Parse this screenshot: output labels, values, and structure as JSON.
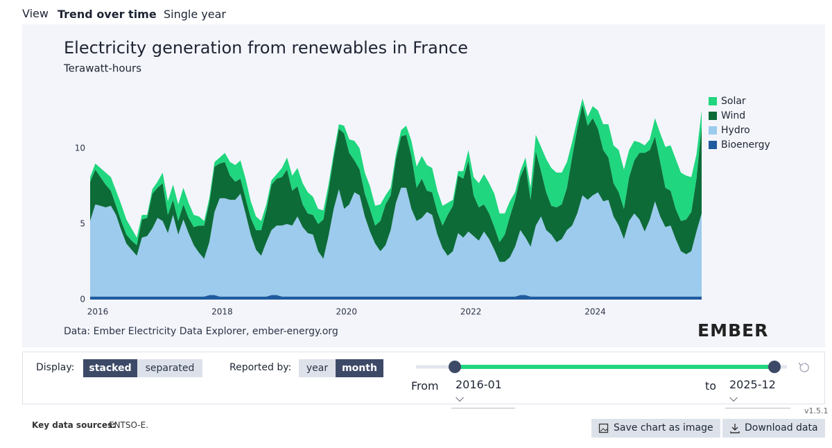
{
  "tabs": {
    "label": "View",
    "items": [
      "Trend over time",
      "Single year"
    ]
  },
  "chart_data": {
    "type": "stacked-area",
    "title": "Electricity generation from renewables in France",
    "subtitle": "Terawatt-hours",
    "x": [
      "2016-01",
      "2016-02",
      "2016-03",
      "2016-04",
      "2016-05",
      "2016-06",
      "2016-07",
      "2016-08",
      "2016-09",
      "2016-10",
      "2016-11",
      "2016-12",
      "2017-01",
      "2017-02",
      "2017-03",
      "2017-04",
      "2017-05",
      "2017-06",
      "2017-07",
      "2017-08",
      "2017-09",
      "2017-10",
      "2017-11",
      "2017-12",
      "2018-01",
      "2018-02",
      "2018-03",
      "2018-04",
      "2018-05",
      "2018-06",
      "2018-07",
      "2018-08",
      "2018-09",
      "2018-10",
      "2018-11",
      "2018-12",
      "2019-01",
      "2019-02",
      "2019-03",
      "2019-04",
      "2019-05",
      "2019-06",
      "2019-07",
      "2019-08",
      "2019-09",
      "2019-10",
      "2019-11",
      "2019-12",
      "2020-01",
      "2020-02",
      "2020-03",
      "2020-04",
      "2020-05",
      "2020-06",
      "2020-07",
      "2020-08",
      "2020-09",
      "2020-10",
      "2020-11",
      "2020-12",
      "2021-01",
      "2021-02",
      "2021-03",
      "2021-04",
      "2021-05",
      "2021-06",
      "2021-07",
      "2021-08",
      "2021-09",
      "2021-10",
      "2021-11",
      "2021-12",
      "2022-01",
      "2022-02",
      "2022-03",
      "2022-04",
      "2022-05",
      "2022-06",
      "2022-07",
      "2022-08",
      "2022-09",
      "2022-10",
      "2022-11",
      "2022-12",
      "2023-01",
      "2023-02",
      "2023-03",
      "2023-04",
      "2023-05",
      "2023-06",
      "2023-07",
      "2023-08",
      "2023-09",
      "2023-10",
      "2023-11",
      "2023-12",
      "2024-01",
      "2024-02",
      "2024-03",
      "2024-04",
      "2024-05",
      "2024-06",
      "2024-07",
      "2024-08",
      "2024-09",
      "2024-10",
      "2024-11",
      "2024-12",
      "2025-01",
      "2025-02",
      "2025-03",
      "2025-04",
      "2025-05",
      "2025-06",
      "2025-07",
      "2025-08",
      "2025-09",
      "2025-10",
      "2025-11"
    ],
    "series": [
      {
        "name": "Bioenergy",
        "color": "#1f5b9e",
        "values": [
          0.2,
          0.2,
          0.2,
          0.2,
          0.2,
          0.2,
          0.2,
          0.2,
          0.2,
          0.2,
          0.2,
          0.2,
          0.2,
          0.2,
          0.2,
          0.2,
          0.2,
          0.2,
          0.2,
          0.2,
          0.2,
          0.2,
          0.2,
          0.3,
          0.3,
          0.2,
          0.2,
          0.2,
          0.2,
          0.2,
          0.2,
          0.2,
          0.2,
          0.2,
          0.2,
          0.3,
          0.3,
          0.2,
          0.2,
          0.2,
          0.2,
          0.2,
          0.2,
          0.2,
          0.2,
          0.2,
          0.2,
          0.2,
          0.2,
          0.2,
          0.2,
          0.2,
          0.2,
          0.2,
          0.2,
          0.2,
          0.2,
          0.2,
          0.2,
          0.2,
          0.2,
          0.2,
          0.2,
          0.2,
          0.2,
          0.2,
          0.2,
          0.2,
          0.2,
          0.2,
          0.2,
          0.2,
          0.2,
          0.2,
          0.2,
          0.2,
          0.2,
          0.2,
          0.2,
          0.2,
          0.2,
          0.2,
          0.2,
          0.3,
          0.3,
          0.2,
          0.2,
          0.2,
          0.2,
          0.2,
          0.2,
          0.2,
          0.2,
          0.2,
          0.2,
          0.2,
          0.2,
          0.2,
          0.2,
          0.2,
          0.2,
          0.2,
          0.2,
          0.2,
          0.2,
          0.2,
          0.2,
          0.2,
          0.2,
          0.2,
          0.2,
          0.2,
          0.2,
          0.2,
          0.2,
          0.2,
          0.2,
          0.2,
          0.2
        ]
      },
      {
        "name": "Hydro",
        "color": "#9ccbed",
        "values": [
          5.0,
          6.1,
          6.0,
          5.9,
          6.0,
          5.4,
          4.4,
          3.5,
          3.1,
          2.7,
          3.9,
          4.0,
          4.5,
          5.2,
          5.0,
          4.2,
          5.4,
          4.1,
          5.1,
          4.2,
          3.4,
          2.9,
          2.5,
          3.5,
          5.5,
          6.5,
          6.5,
          6.4,
          6.4,
          6.8,
          5.5,
          4.1,
          3.1,
          2.7,
          3.6,
          4.3,
          4.6,
          4.7,
          4.8,
          4.7,
          5.3,
          4.6,
          4.2,
          4.1,
          3.0,
          2.5,
          4.0,
          5.8,
          7.1,
          5.8,
          6.1,
          6.9,
          6.7,
          5.3,
          4.3,
          3.5,
          3.0,
          3.4,
          4.4,
          6.2,
          7.2,
          7.2,
          5.8,
          5.0,
          5.2,
          5.6,
          5.4,
          4.1,
          3.2,
          2.7,
          3.0,
          4.2,
          3.9,
          4.3,
          4.0,
          3.7,
          4.3,
          3.8,
          3.1,
          2.3,
          2.3,
          2.6,
          3.3,
          4.3,
          3.8,
          3.3,
          4.7,
          5.3,
          4.4,
          4.1,
          3.6,
          3.8,
          4.4,
          4.7,
          5.5,
          6.7,
          6.4,
          6.7,
          6.9,
          6.3,
          6.4,
          5.3,
          4.7,
          3.8,
          5.0,
          5.5,
          5.1,
          4.3,
          5.1,
          6.3,
          5.3,
          4.6,
          4.7,
          3.8,
          3.0,
          2.8,
          3.0,
          4.3,
          5.5
        ]
      },
      {
        "name": "Wind",
        "color": "#0d6b38",
        "values": [
          2.6,
          2.3,
          1.9,
          1.5,
          1.0,
          0.6,
          0.6,
          0.6,
          0.6,
          0.7,
          1.2,
          1.2,
          2.3,
          2.0,
          2.5,
          1.2,
          1.0,
          0.9,
          1.0,
          1.0,
          1.2,
          1.8,
          2.2,
          2.6,
          3.0,
          2.3,
          2.4,
          1.6,
          1.2,
          1.0,
          1.0,
          1.1,
          1.3,
          1.7,
          2.1,
          3.0,
          3.1,
          3.2,
          3.6,
          2.3,
          2.0,
          1.5,
          1.3,
          1.3,
          1.8,
          2.6,
          3.0,
          3.4,
          4.0,
          5.0,
          3.4,
          2.1,
          1.7,
          1.5,
          1.5,
          1.2,
          2.0,
          2.7,
          2.3,
          2.9,
          3.4,
          3.5,
          3.5,
          2.2,
          2.6,
          1.4,
          1.5,
          1.5,
          1.5,
          2.7,
          3.0,
          3.8,
          3.9,
          4.7,
          2.7,
          2.2,
          1.8,
          1.7,
          1.5,
          1.3,
          1.8,
          2.7,
          3.1,
          3.5,
          4.8,
          3.1,
          4.9,
          3.0,
          2.5,
          1.9,
          2.3,
          2.3,
          2.8,
          4.5,
          5.6,
          6.0,
          4.9,
          5.1,
          4.2,
          3.4,
          2.8,
          2.2,
          2.2,
          2.0,
          2.9,
          3.5,
          4.4,
          5.2,
          4.6,
          4.3,
          3.6,
          2.6,
          2.3,
          2.0,
          2.0,
          2.3,
          2.6,
          3.5,
          5.8
        ]
      },
      {
        "name": "Solar",
        "color": "#20d67e",
        "values": [
          0.3,
          0.4,
          0.6,
          0.8,
          0.9,
          1.0,
          1.1,
          1.0,
          0.8,
          0.5,
          0.3,
          0.2,
          0.3,
          0.4,
          0.7,
          0.9,
          1.0,
          1.1,
          1.1,
          1.0,
          0.8,
          0.6,
          0.3,
          0.3,
          0.3,
          0.4,
          0.6,
          0.9,
          1.1,
          1.2,
          1.3,
          1.1,
          0.9,
          0.6,
          0.4,
          0.3,
          0.3,
          0.6,
          0.8,
          1.0,
          1.2,
          1.4,
          1.4,
          1.2,
          1.0,
          0.6,
          0.4,
          0.3,
          0.3,
          0.5,
          0.9,
          1.3,
          1.4,
          1.4,
          1.5,
          1.3,
          1.1,
          0.6,
          0.5,
          0.3,
          0.4,
          0.6,
          1.0,
          1.4,
          1.5,
          1.7,
          1.6,
          1.4,
          1.3,
          0.8,
          0.4,
          0.3,
          0.5,
          0.7,
          1.2,
          1.6,
          2.0,
          2.0,
          2.2,
          1.9,
          1.4,
          1.0,
          0.5,
          0.4,
          0.5,
          0.8,
          1.1,
          1.6,
          2.2,
          2.5,
          2.3,
          2.1,
          1.7,
          1.0,
          0.6,
          0.4,
          0.6,
          0.8,
          1.2,
          1.7,
          2.2,
          2.5,
          2.8,
          2.6,
          1.8,
          1.3,
          0.7,
          0.5,
          0.7,
          1.2,
          1.9,
          2.7,
          3.0,
          3.3,
          3.2,
          2.9,
          2.3,
          1.6,
          1.0
        ]
      }
    ],
    "ylim": [
      0,
      14
    ],
    "yticks": [
      0,
      5,
      10
    ],
    "xticks": [
      "2016",
      "2018",
      "2020",
      "2022",
      "2024"
    ],
    "grid": false,
    "legend": "right",
    "source": "Data: Ember Electricity Data Explorer, ember-energy.org",
    "logo": "EMBER"
  },
  "controls": {
    "display_label": "Display:",
    "display_options": [
      "stacked",
      "separated"
    ],
    "reported_label": "Reported by:",
    "reported_options": [
      "year",
      "month"
    ],
    "from_label": "From",
    "from_value": "2016-01",
    "to_label": "to",
    "to_value": "2025-12"
  },
  "version": "v1.5.1",
  "footer": {
    "sources_label": "Key data sources:",
    "sources": "ENTSO-E.",
    "buttons": [
      "Save chart as image",
      "Download data"
    ]
  }
}
